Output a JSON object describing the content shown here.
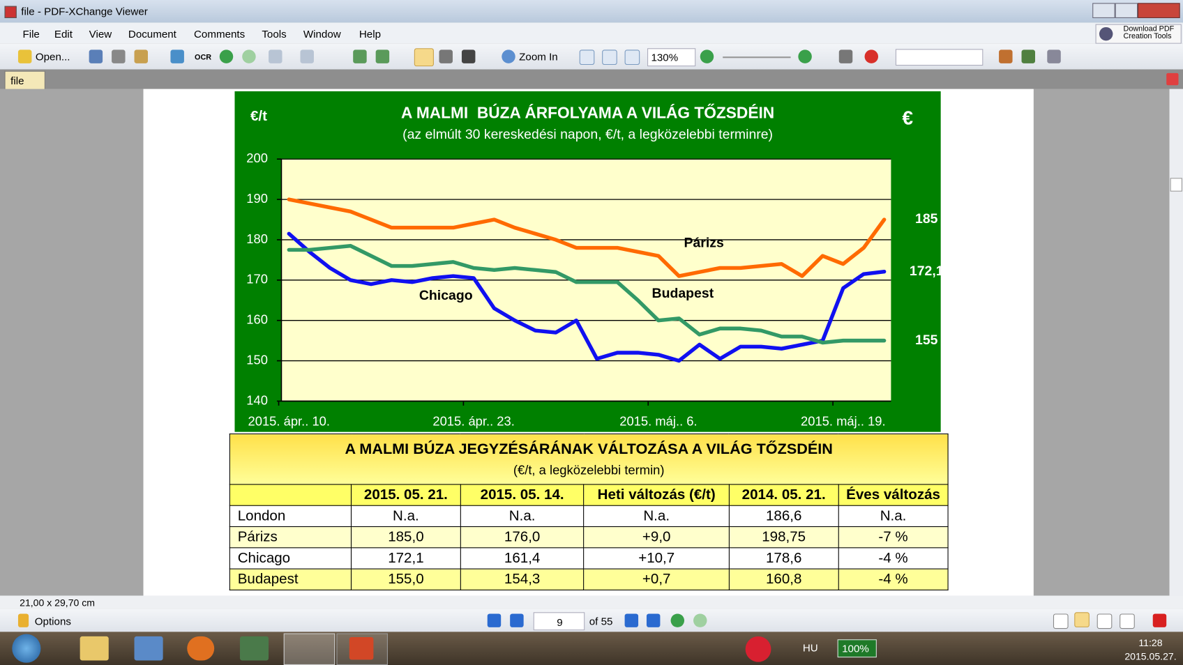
{
  "window": {
    "title": "file - PDF-XChange Viewer"
  },
  "menu": [
    "File",
    "Edit",
    "View",
    "Document",
    "Comments",
    "Tools",
    "Window",
    "Help"
  ],
  "promo": [
    "Download PDF",
    "Creation Tools"
  ],
  "toolbar": {
    "open": "Open...",
    "ocr": "OCR",
    "zoom_in": "Zoom In",
    "zoom": "130%"
  },
  "tab": "file",
  "chart_data": {
    "type": "line",
    "title": "A MALMI  BÚZA ÁRFOLYAMA A VILÁG TŐZSDÉIN",
    "subtitle": "(az elmúlt 30 kereskedési napon, €/t, a legközelebbi terminre)",
    "y_label": "€/t",
    "corner_label": "€",
    "categories": [
      "2015. ápr.. 10.",
      null,
      null,
      null,
      null,
      null,
      null,
      null,
      null,
      "2015. ápr.. 23.",
      null,
      null,
      null,
      null,
      null,
      null,
      null,
      null,
      "2015. máj.. 6.",
      null,
      null,
      null,
      null,
      null,
      null,
      null,
      null,
      "2015. máj.. 19.",
      null,
      null
    ],
    "ylim": [
      140,
      200
    ],
    "yticks": [
      140,
      150,
      160,
      170,
      180,
      190,
      200
    ],
    "grid": true,
    "series": [
      {
        "name": "Párizs",
        "color": "#ff6a00",
        "values": [
          190,
          189,
          188,
          187,
          185,
          183,
          183,
          183,
          183,
          184,
          185,
          183,
          181.5,
          180,
          178,
          178,
          178,
          177,
          176,
          171,
          172,
          173,
          173,
          173.5,
          174,
          171,
          176,
          174,
          178,
          185
        ],
        "value_labels": [
          null,
          null,
          null,
          null,
          null,
          null,
          null,
          null,
          null,
          null,
          null,
          null,
          null,
          null,
          null,
          null,
          null,
          null,
          null,
          null,
          null,
          null,
          null,
          null,
          null,
          null,
          null,
          null,
          null,
          "185"
        ]
      },
      {
        "name": "Chicago",
        "color": "#1010f0",
        "values": [
          181.5,
          177,
          173,
          170,
          169,
          170,
          169.5,
          170.5,
          171,
          170.5,
          163,
          160,
          157.5,
          157,
          160,
          150.5,
          152,
          152,
          151.5,
          150,
          154,
          150.5,
          153.5,
          153.5,
          153,
          154,
          155,
          168,
          171.5,
          172.1
        ],
        "value_labels": [
          null,
          null,
          null,
          null,
          null,
          null,
          null,
          null,
          null,
          null,
          null,
          null,
          null,
          null,
          null,
          null,
          null,
          null,
          null,
          null,
          null,
          null,
          null,
          null,
          null,
          null,
          null,
          null,
          null,
          "172,1"
        ]
      },
      {
        "name": "Budapest",
        "color": "#339966",
        "values": [
          177.5,
          177.5,
          178,
          178.5,
          176,
          173.5,
          173.5,
          174,
          174.5,
          173,
          172.5,
          173,
          172.5,
          172,
          169.5,
          169.5,
          169.5,
          165,
          160,
          160.5,
          156.5,
          158,
          158,
          157.5,
          156,
          156,
          154.5,
          155,
          155,
          155
        ],
        "value_labels": [
          null,
          null,
          null,
          null,
          null,
          null,
          null,
          null,
          null,
          null,
          null,
          null,
          null,
          null,
          null,
          null,
          null,
          null,
          null,
          null,
          null,
          null,
          null,
          null,
          null,
          null,
          null,
          null,
          null,
          "155"
        ]
      }
    ]
  },
  "table": {
    "title": "A MALMI BÚZA JEGYZÉSÁRÁNAK VÁLTOZÁSA A VILÁG TŐZSDÉIN",
    "subtitle": "(€/t, a legközelebbi termin)",
    "columns": [
      "2015. 05. 21.",
      "2015. 05. 14.",
      "Heti változás (€/t)",
      "2014. 05. 21.",
      "Éves változás"
    ],
    "rows": [
      [
        "London",
        "N.a.",
        "N.a.",
        "N.a.",
        "186,6",
        "N.a."
      ],
      [
        "Párizs",
        "185,0",
        "176,0",
        "+9,0",
        "198,75",
        "-7 %"
      ],
      [
        "Chicago",
        "172,1",
        "161,4",
        "+10,7",
        "178,6",
        "-4 %"
      ],
      [
        "Budapest",
        "155,0",
        "154,3",
        "+0,7",
        "160,8",
        "-4 %"
      ]
    ]
  },
  "status": {
    "page_size": "21,00 x 29,70 cm",
    "options": "Options",
    "page": "9",
    "page_count": "of 55"
  },
  "taskbar": {
    "language": "HU",
    "battery": "100%",
    "time": "11:28",
    "date": "2015.05.27."
  }
}
